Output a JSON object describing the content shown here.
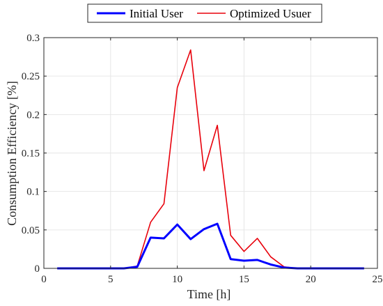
{
  "chart_data": {
    "type": "line",
    "title": "",
    "xlabel": "Time [h]",
    "ylabel": "Consumption Efficiency [%]",
    "xlim": [
      0,
      25
    ],
    "ylim": [
      0,
      0.3
    ],
    "xticks": [
      0,
      5,
      10,
      15,
      20,
      25
    ],
    "yticks": [
      0,
      0.05,
      0.1,
      0.15,
      0.2,
      0.25,
      0.3
    ],
    "xtick_labels": [
      "0",
      "5",
      "10",
      "15",
      "20",
      "25"
    ],
    "ytick_labels": [
      "0",
      "0.05",
      "0.1",
      "0.15",
      "0.2",
      "0.25",
      "0.3"
    ],
    "grid": true,
    "legend_position": "top-center",
    "x": [
      1,
      2,
      3,
      4,
      5,
      6,
      7,
      8,
      9,
      10,
      11,
      12,
      13,
      14,
      15,
      16,
      17,
      18,
      19,
      20,
      21,
      22,
      23,
      24
    ],
    "series": [
      {
        "name": "Initial User",
        "color": "#0000ff",
        "values": [
          0,
          0,
          0,
          0,
          0,
          0,
          0.002,
          0.04,
          0.039,
          0.057,
          0.038,
          0.051,
          0.058,
          0.012,
          0.01,
          0.011,
          0.005,
          0.001,
          0,
          0,
          0,
          0,
          0,
          0
        ]
      },
      {
        "name": "Optimized Usuer",
        "color": "#e8000b",
        "values": [
          0,
          0,
          0,
          0,
          0,
          0,
          0.003,
          0.06,
          0.084,
          0.235,
          0.284,
          0.127,
          0.186,
          0.043,
          0.022,
          0.039,
          0.015,
          0.002,
          0,
          0,
          0,
          0,
          0,
          0
        ]
      }
    ]
  }
}
